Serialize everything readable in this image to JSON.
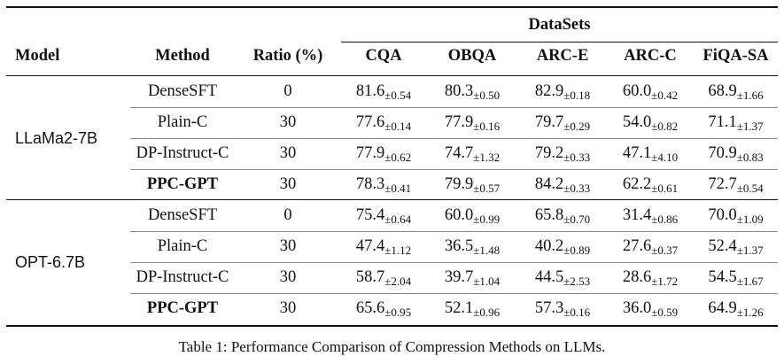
{
  "headers": {
    "model": "Model",
    "method": "Method",
    "ratio": "Ratio (%)",
    "datasets": "DataSets",
    "columns": [
      "CQA",
      "OBQA",
      "ARC-E",
      "ARC-C",
      "FiQA-SA"
    ]
  },
  "groups": [
    {
      "model": "LLaMa2-7B",
      "rows": [
        {
          "method": "DenseSFT",
          "ratio": "0",
          "bold": false,
          "values": [
            [
              "81.6",
              "±0.54"
            ],
            [
              "80.3",
              "±0.50"
            ],
            [
              "82.9",
              "±0.18"
            ],
            [
              "60.0",
              "±0.42"
            ],
            [
              "68.9",
              "±1.66"
            ]
          ]
        },
        {
          "method": "Plain-C",
          "ratio": "30",
          "bold": false,
          "values": [
            [
              "77.6",
              "±0.14"
            ],
            [
              "77.9",
              "±0.16"
            ],
            [
              "79.7",
              "±0.29"
            ],
            [
              "54.0",
              "±0.82"
            ],
            [
              "71.1",
              "±1.37"
            ]
          ]
        },
        {
          "method": "DP-Instruct-C",
          "ratio": "30",
          "bold": false,
          "values": [
            [
              "77.9",
              "±0.62"
            ],
            [
              "74.7",
              "±1.32"
            ],
            [
              "79.2",
              "±0.33"
            ],
            [
              "47.1",
              "±4.10"
            ],
            [
              "70.9",
              "±0.83"
            ]
          ]
        },
        {
          "method": "PPC-GPT",
          "ratio": "30",
          "bold": true,
          "values": [
            [
              "78.3",
              "±0.41"
            ],
            [
              "79.9",
              "±0.57"
            ],
            [
              "84.2",
              "±0.33"
            ],
            [
              "62.2",
              "±0.61"
            ],
            [
              "72.7",
              "±0.54"
            ]
          ]
        }
      ]
    },
    {
      "model": "OPT-6.7B",
      "rows": [
        {
          "method": "DenseSFT",
          "ratio": "0",
          "bold": false,
          "values": [
            [
              "75.4",
              "±0.64"
            ],
            [
              "60.0",
              "±0.99"
            ],
            [
              "65.8",
              "±0.70"
            ],
            [
              "31.4",
              "±0.86"
            ],
            [
              "70.0",
              "±1.09"
            ]
          ]
        },
        {
          "method": "Plain-C",
          "ratio": "30",
          "bold": false,
          "values": [
            [
              "47.4",
              "±1.12"
            ],
            [
              "36.5",
              "±1.48"
            ],
            [
              "40.2",
              "±0.89"
            ],
            [
              "27.6",
              "±0.37"
            ],
            [
              "52.4",
              "±1.37"
            ]
          ]
        },
        {
          "method": "DP-Instruct-C",
          "ratio": "30",
          "bold": false,
          "values": [
            [
              "58.7",
              "±2.04"
            ],
            [
              "39.7",
              "±1.04"
            ],
            [
              "44.5",
              "±2.53"
            ],
            [
              "28.6",
              "±1.72"
            ],
            [
              "54.5",
              "±1.67"
            ]
          ]
        },
        {
          "method": "PPC-GPT",
          "ratio": "30",
          "bold": true,
          "values": [
            [
              "65.6",
              "±0.95"
            ],
            [
              "52.1",
              "±0.96"
            ],
            [
              "57.3",
              "±0.16"
            ],
            [
              "36.0",
              "±0.59"
            ],
            [
              "64.9",
              "±1.26"
            ]
          ]
        }
      ]
    }
  ],
  "caption": "Table 1: Performance Comparison of Compression Methods on LLMs."
}
